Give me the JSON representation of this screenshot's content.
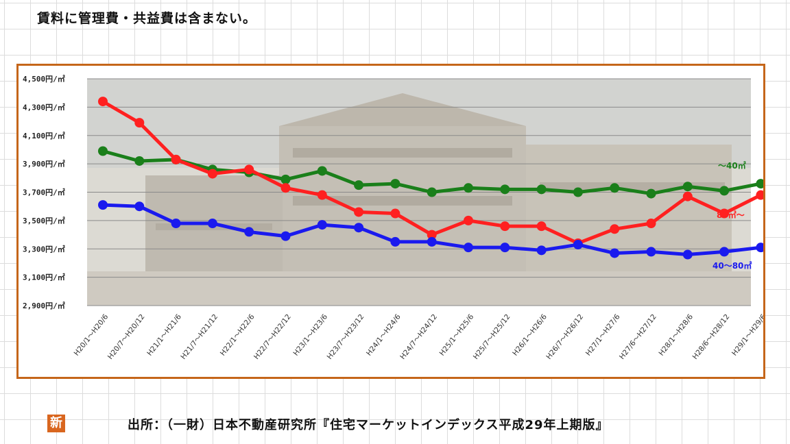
{
  "note": "賃料に管理費・共益費は含まない。",
  "source": "出所：（一財）日本不動産研究所『住宅マーケットインデックス平成29年上期版』",
  "badge": "新",
  "colors": {
    "frame": "#c5661a",
    "badge": "#d9661f"
  },
  "chart_data": {
    "type": "line",
    "title": "",
    "xlabel": "",
    "ylabel": "",
    "ylim": [
      2900,
      4500
    ],
    "y_ticks": [
      {
        "value": 4500,
        "label": "4,500円/㎡"
      },
      {
        "value": 4300,
        "label": "4,300円/㎡"
      },
      {
        "value": 4100,
        "label": "4,100円/㎡"
      },
      {
        "value": 3900,
        "label": "3,900円/㎡"
      },
      {
        "value": 3700,
        "label": "3,700円/㎡"
      },
      {
        "value": 3500,
        "label": "3,500円/㎡"
      },
      {
        "value": 3300,
        "label": "3,300円/㎡"
      },
      {
        "value": 3100,
        "label": "3,100円/㎡"
      },
      {
        "value": 2900,
        "label": "2,900円/㎡"
      }
    ],
    "grid": true,
    "categories": [
      "H20/1～H20/6",
      "H20/7～H20/12",
      "H21/1～H21/6",
      "H21/7～H21/12",
      "H22/1～H22/6",
      "H22/7～H22/12",
      "H23/1～H23/6",
      "H23/7～H23/12",
      "H24/1～H24/6",
      "H24/7～H24/12",
      "H25/1～H25/6",
      "H25/7～H25/12",
      "H26/1～H26/6",
      "H26/7～H26/12",
      "H27/1～H27/6",
      "H27/6～H27/12",
      "H28/1～H28/6",
      "H28/6～H28/12",
      "H29/1～H29/6"
    ],
    "series": [
      {
        "name": "～40㎡",
        "color": "#1a7f1a",
        "values": [
          3990,
          3920,
          3930,
          3860,
          3840,
          3790,
          3850,
          3750,
          3760,
          3700,
          3730,
          3720,
          3720,
          3700,
          3730,
          3690,
          3740,
          3710,
          3760
        ]
      },
      {
        "name": "80㎡～",
        "color": "#ff2020",
        "values": [
          4340,
          4190,
          3930,
          3830,
          3860,
          3730,
          3680,
          3560,
          3550,
          3400,
          3500,
          3460,
          3460,
          3340,
          3440,
          3480,
          3670,
          3550,
          3680
        ]
      },
      {
        "name": "40～80㎡",
        "color": "#1a1aee",
        "values": [
          3610,
          3600,
          3480,
          3480,
          3420,
          3390,
          3470,
          3450,
          3350,
          3350,
          3310,
          3310,
          3290,
          3330,
          3270,
          3280,
          3260,
          3280,
          3310
        ]
      }
    ]
  }
}
